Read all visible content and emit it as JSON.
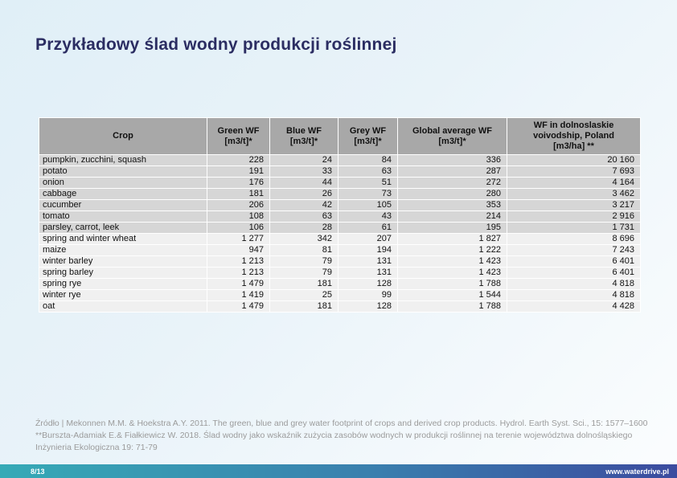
{
  "slide": {
    "title": "Przykładowy ślad wodny produkcji roślinnej",
    "source_note": "Źródło | Mekonnen M.M. & Hoekstra A.Y. 2011. The green, blue and grey water footprint of crops and derived crop products. Hydrol. Earth Syst. Sci., 15: 1577–1600 **Burszta-Adamiak E.& Fiałkiewicz W. 2018. Ślad wodny jako wskaźnik zużycia zasobów wodnych w produkcji roślinnej na terenie województwa dolnośląskiego  Inżynieria Ekologiczna 19: 71-79",
    "page_number": "8/13",
    "website": "www.waterdrive.pl"
  },
  "table": {
    "columns": [
      {
        "id": "crop",
        "label": "Crop"
      },
      {
        "id": "green-wf",
        "label": "Green WF\n[m3/t]*"
      },
      {
        "id": "blue-wf",
        "label": "Blue WF\n[m3/t]*"
      },
      {
        "id": "grey-wf",
        "label": "Grey WF\n[m3/t]*"
      },
      {
        "id": "global-average-wf",
        "label": "Global average WF\n[m3/t]*"
      },
      {
        "id": "wf-dolnoslaskie",
        "label": "WF in  dolnoslaskie\nvoivodship, Poland\n[m3/ha] **"
      }
    ],
    "rows": [
      {
        "group": "vegetables",
        "values": [
          "pumpkin, zucchini, squash",
          "228",
          "24",
          "84",
          "336",
          "20 160"
        ]
      },
      {
        "group": "vegetables",
        "values": [
          "potato",
          "191",
          "33",
          "63",
          "287",
          "7 693"
        ]
      },
      {
        "group": "vegetables",
        "values": [
          "onion",
          "176",
          "44",
          "51",
          "272",
          "4 164"
        ]
      },
      {
        "group": "vegetables",
        "values": [
          "cabbage",
          "181",
          "26",
          "73",
          "280",
          "3 462"
        ]
      },
      {
        "group": "vegetables",
        "values": [
          "cucumber",
          "206",
          "42",
          "105",
          "353",
          "3 217"
        ]
      },
      {
        "group": "vegetables",
        "values": [
          "tomato",
          "108",
          "63",
          "43",
          "214",
          "2 916"
        ]
      },
      {
        "group": "vegetables",
        "values": [
          "parsley, carrot, leek",
          "106",
          "28",
          "61",
          "195",
          "1 731"
        ]
      },
      {
        "group": "cereals",
        "values": [
          "spring and winter wheat",
          "1 277",
          "342",
          "207",
          "1 827",
          "8 696"
        ]
      },
      {
        "group": "cereals",
        "values": [
          "maize",
          "947",
          "81",
          "194",
          "1 222",
          "7 243"
        ]
      },
      {
        "group": "cereals",
        "values": [
          "winter barley",
          "1 213",
          "79",
          "131",
          "1 423",
          "6 401"
        ]
      },
      {
        "group": "cereals",
        "values": [
          "spring barley",
          "1 213",
          "79",
          "131",
          "1 423",
          "6 401"
        ]
      },
      {
        "group": "cereals",
        "values": [
          "spring rye",
          "1 479",
          "181",
          "128",
          "1 788",
          "4 818"
        ]
      },
      {
        "group": "cereals",
        "values": [
          "winter rye",
          "1 419",
          "25",
          "99",
          "1 544",
          "4 818"
        ]
      },
      {
        "group": "cereals",
        "values": [
          "oat",
          "1 479",
          "181",
          "128",
          "1 788",
          "4 428"
        ]
      }
    ]
  },
  "colors": {
    "header-bg": "#a8a8a8",
    "veg-row-bg": "#d6d6d6",
    "cereal-row-bg": "#f0f0f0",
    "title-color": "#2b2d62",
    "source-color": "#9b9b9b",
    "bar-left": "#36aab6",
    "bar-right": "#3b4b9f",
    "bar-text": "#ffffff"
  }
}
